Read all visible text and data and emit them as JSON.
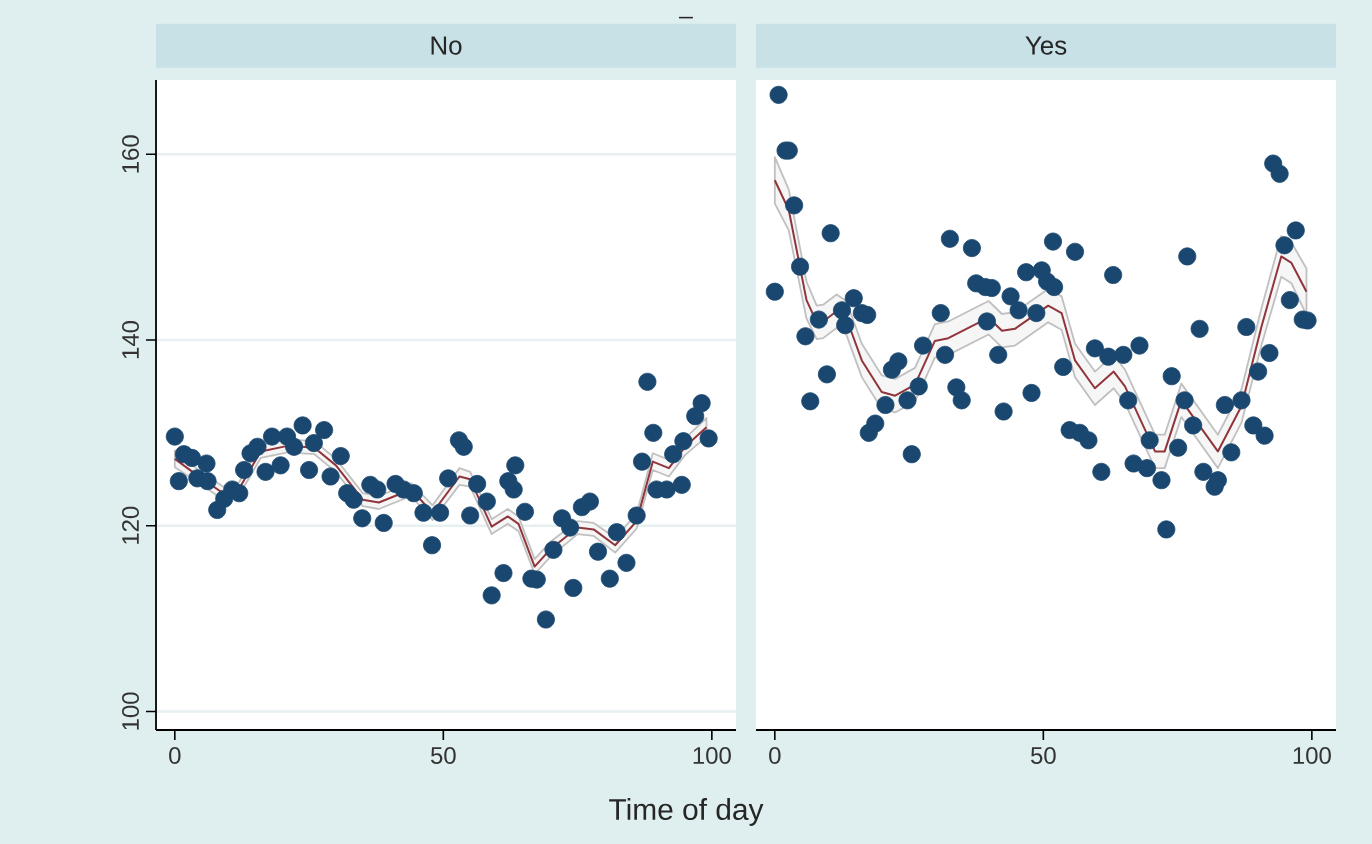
{
  "chart_data": [
    {
      "type": "scatter",
      "title": "No",
      "xlabel": "Time of day",
      "annotations": [
        "_"
      ],
      "xlim": [
        -3.5,
        104.5
      ],
      "ylim": [
        98,
        168
      ],
      "xticks": [
        0,
        50,
        100
      ],
      "yticks": [
        100,
        120,
        140,
        160
      ],
      "grid": "y",
      "series": [
        {
          "marker": "circle",
          "color": "#1a476f",
          "x": [
            0,
            0.75,
            1.7,
            3.2,
            5.9,
            4.2,
            6.1,
            7.9,
            9.2,
            10.7,
            12.0,
            12.9,
            14.1,
            15.4,
            16.9,
            18.1,
            19.7,
            20.9,
            22.2,
            23.8,
            25.0,
            25.9,
            27.8,
            29.0,
            30.9,
            32.1,
            33.3,
            34.9,
            36.4,
            37.7,
            38.9,
            41.1,
            42.6,
            44.5,
            46.3,
            47.9,
            49.4,
            50.9,
            52.9,
            53.8,
            55.0,
            56.3,
            58.1,
            59.0,
            61.2,
            62.1,
            63.4,
            63.1,
            65.2,
            66.4,
            67.4,
            69.1,
            70.5,
            72.1,
            73.6,
            74.2,
            75.8,
            77.3,
            78.8,
            81.0,
            82.3,
            84.1,
            86.0,
            87.0,
            88.0,
            89.1,
            89.7,
            91.6,
            94.4,
            92.8,
            94.7,
            96.9,
            98.1,
            99.4
          ],
          "values": [
            129.6,
            124.8,
            127.7,
            127.3,
            126.7,
            125.1,
            124.8,
            121.7,
            122.9,
            123.9,
            123.5,
            126,
            127.8,
            128.5,
            125.8,
            129.6,
            126.5,
            129.6,
            128.5,
            130.8,
            126,
            128.9,
            130.3,
            125.3,
            127.5,
            123.5,
            122.8,
            120.8,
            124.4,
            123.9,
            120.3,
            124.5,
            123.9,
            123.5,
            121.4,
            117.9,
            121.4,
            125.1,
            129.2,
            128.5,
            121.1,
            124.5,
            122.6,
            112.5,
            114.9,
            124.8,
            126.5,
            123.9,
            121.5,
            114.3,
            114.2,
            109.9,
            117.4,
            120.8,
            119.8,
            113.3,
            122,
            122.6,
            117.2,
            114.3,
            119.3,
            116,
            121.1,
            126.9,
            135.5,
            130,
            123.9,
            123.9,
            124.4,
            127.7,
            129.1,
            131.8,
            133.2,
            129.4
          ]
        },
        {
          "type": "line",
          "color": "#90353b",
          "line_style": "solid",
          "x": [
            0,
            4,
            9,
            12,
            16,
            21,
            26,
            30,
            35,
            38,
            44,
            48,
            53,
            55,
            59,
            62,
            64,
            67,
            70,
            75,
            78,
            82,
            86,
            89,
            92,
            95,
            99
          ],
          "values": [
            127.2,
            125.5,
            123.5,
            124,
            128,
            128.6,
            128.4,
            126.5,
            122.8,
            122.5,
            123.9,
            121.4,
            125.3,
            125,
            119.9,
            121,
            120.2,
            115.6,
            117.5,
            119.8,
            119.6,
            117.9,
            120.5,
            126.9,
            126.2,
            128.5,
            130.6
          ],
          "lower": [
            126.3,
            124.8,
            122.8,
            123.3,
            127.3,
            127.9,
            127.7,
            125.8,
            122.1,
            121.8,
            123.2,
            120.6,
            124.4,
            124.2,
            119.1,
            120.2,
            119.4,
            114.8,
            116.7,
            119.1,
            118.9,
            117.1,
            119.7,
            126.0,
            125.3,
            127.6,
            129.6
          ],
          "upper": [
            128.1,
            126.2,
            124.2,
            124.7,
            128.7,
            129.3,
            129.1,
            127.2,
            123.5,
            123.2,
            124.6,
            122.2,
            126.2,
            125.8,
            120.7,
            121.8,
            121.0,
            116.4,
            118.3,
            120.5,
            120.3,
            118.7,
            121.3,
            127.8,
            127.1,
            129.4,
            131.6
          ]
        }
      ]
    },
    {
      "type": "scatter",
      "title": "Yes",
      "xlim": [
        -3.5,
        104.5
      ],
      "ylim": [
        98,
        168
      ],
      "xticks": [
        0,
        50,
        100
      ],
      "yticks": [
        100,
        120,
        140,
        160
      ],
      "tick_labels": "x",
      "grid": "y",
      "series": [
        {
          "marker": "circle",
          "color": "#1a476f",
          "x": [
            0.7,
            2.0,
            2.6,
            0,
            3.6,
            4.7,
            10.4,
            5.7,
            8.2,
            9.7,
            12.5,
            14.7,
            16.2,
            17.2,
            13.1,
            27.6,
            30.9,
            32.6,
            36.7,
            37.5,
            40.4,
            39.2,
            39.5,
            41.6,
            43.9,
            45.4,
            46.8,
            49.7,
            48.7,
            51.8,
            50.7,
            52,
            55.9,
            53.7,
            59.6,
            63,
            67.9,
            73.9,
            76.8,
            79.1,
            87.8,
            92.8,
            94,
            97,
            94.9,
            95.9,
            98.3,
            99.2,
            92.1,
            90,
            6.6,
            20.6,
            21.8,
            23,
            17.5,
            18.7,
            24.7,
            26.8,
            25.5,
            31.7,
            33.8,
            34.8,
            42.6,
            47.8,
            54.9,
            56.8,
            58.4,
            60.8,
            62.1,
            64.9,
            65.8,
            69.8,
            66.8,
            69.3,
            72,
            72.9,
            75.1,
            76.3,
            77.9,
            79.8,
            81.9,
            82.5,
            83.8,
            85,
            86.9,
            89.1,
            91.2
          ],
          "values": [
            166.4,
            160.4,
            160.4,
            145.2,
            154.5,
            147.9,
            151.5,
            140.4,
            142.2,
            136.3,
            143.2,
            144.5,
            142.9,
            142.7,
            141.6,
            139.4,
            142.9,
            150.9,
            149.9,
            146.1,
            145.6,
            145.7,
            142,
            138.4,
            144.7,
            143.2,
            147.3,
            147.5,
            142.9,
            150.6,
            146.3,
            145.7,
            149.5,
            137.1,
            139.1,
            147,
            139.4,
            136.1,
            149,
            141.2,
            141.4,
            159,
            157.9,
            151.8,
            150.2,
            144.3,
            142.2,
            142.1,
            138.6,
            136.6,
            133.4,
            133,
            136.8,
            137.7,
            130,
            131,
            133.5,
            135,
            127.7,
            138.4,
            134.9,
            133.5,
            132.3,
            134.3,
            130.3,
            130,
            129.2,
            125.8,
            138.2,
            138.4,
            133.5,
            129.2,
            126.7,
            126.2,
            124.9,
            119.6,
            128.4,
            133.5,
            130.8,
            125.8,
            124.2,
            124.9,
            133,
            127.9,
            133.5,
            130.8,
            129.7
          ]
        },
        {
          "type": "line",
          "color": "#90353b",
          "line_style": "solid",
          "x": [
            0,
            2.6,
            5.9,
            7.8,
            9,
            11.5,
            13.3,
            16.2,
            19.9,
            22.4,
            26.1,
            29.8,
            32.3,
            39.8,
            42.3,
            44.7,
            50.9,
            53.4,
            55.9,
            59.6,
            63.1,
            65.2,
            70.8,
            72.6,
            75.7,
            82.5,
            86.9,
            90.6,
            94.3,
            96.2,
            99
          ],
          "values": [
            157.2,
            154,
            144.3,
            141.9,
            142,
            143.1,
            142.4,
            137.8,
            134.4,
            134,
            135.2,
            139.9,
            140.2,
            142.4,
            141,
            141.2,
            143.7,
            142.9,
            137.8,
            134.8,
            136.6,
            135,
            128,
            128,
            133.5,
            128,
            132.9,
            141.4,
            149,
            148.3,
            145.2
          ],
          "lower": [
            154.7,
            151.8,
            142.3,
            140.1,
            140.2,
            141.3,
            140.6,
            136,
            132.6,
            132.2,
            133.4,
            138.1,
            138.4,
            140.6,
            139.2,
            139.4,
            141.9,
            141.1,
            136,
            133,
            134.8,
            133.2,
            126.2,
            126.2,
            131.7,
            126.2,
            131.1,
            139.4,
            146.8,
            146.1,
            142.7
          ],
          "upper": [
            159.7,
            156.2,
            146.3,
            143.7,
            143.8,
            144.9,
            144.2,
            139.6,
            136.2,
            135.8,
            137,
            141.7,
            142,
            144.2,
            142.8,
            143,
            145.5,
            144.7,
            139.6,
            136.6,
            138.4,
            136.8,
            129.8,
            129.8,
            135.3,
            129.8,
            134.7,
            143.4,
            151.2,
            150.5,
            147.7
          ]
        }
      ]
    }
  ]
}
